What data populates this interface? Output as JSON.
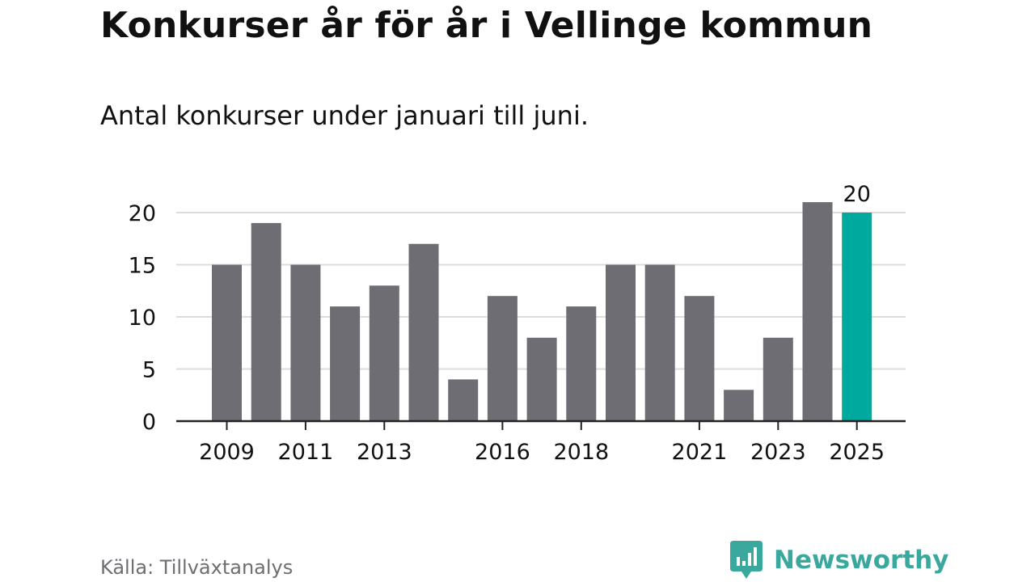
{
  "title": "Konkurser år för år i Vellinge kommun",
  "subtitle": "Antal konkurser under januari till juni.",
  "source": "Källa: Tillväxtanalys",
  "brand": {
    "name": "Newsworthy",
    "icon": "newsworthy-logo-icon",
    "color": "#3aa89c"
  },
  "colors": {
    "bar": "#6e6d73",
    "highlight": "#00a99d",
    "grid": "#dcdcdc",
    "axis": "#222222",
    "text": "#111111"
  },
  "chart_data": {
    "type": "bar",
    "categories": [
      "2009",
      "2010",
      "2011",
      "2012",
      "2013",
      "2014",
      "2015",
      "2016",
      "2017",
      "2018",
      "2019",
      "2020",
      "2021",
      "2022",
      "2023",
      "2024",
      "2025"
    ],
    "values": [
      15,
      19,
      15,
      11,
      13,
      17,
      4,
      12,
      8,
      11,
      15,
      15,
      12,
      3,
      8,
      21,
      20
    ],
    "highlight_category": "2025",
    "data_labels": [
      {
        "category": "2025",
        "text": "20"
      }
    ],
    "x_tick_labels": [
      "2009",
      "2011",
      "2013",
      "2016",
      "2018",
      "2021",
      "2023",
      "2025"
    ],
    "y_ticks": [
      0,
      5,
      10,
      15,
      20
    ],
    "ylim": [
      0,
      21
    ],
    "xlabel": "",
    "ylabel": "",
    "grid": true,
    "legend": "none"
  }
}
